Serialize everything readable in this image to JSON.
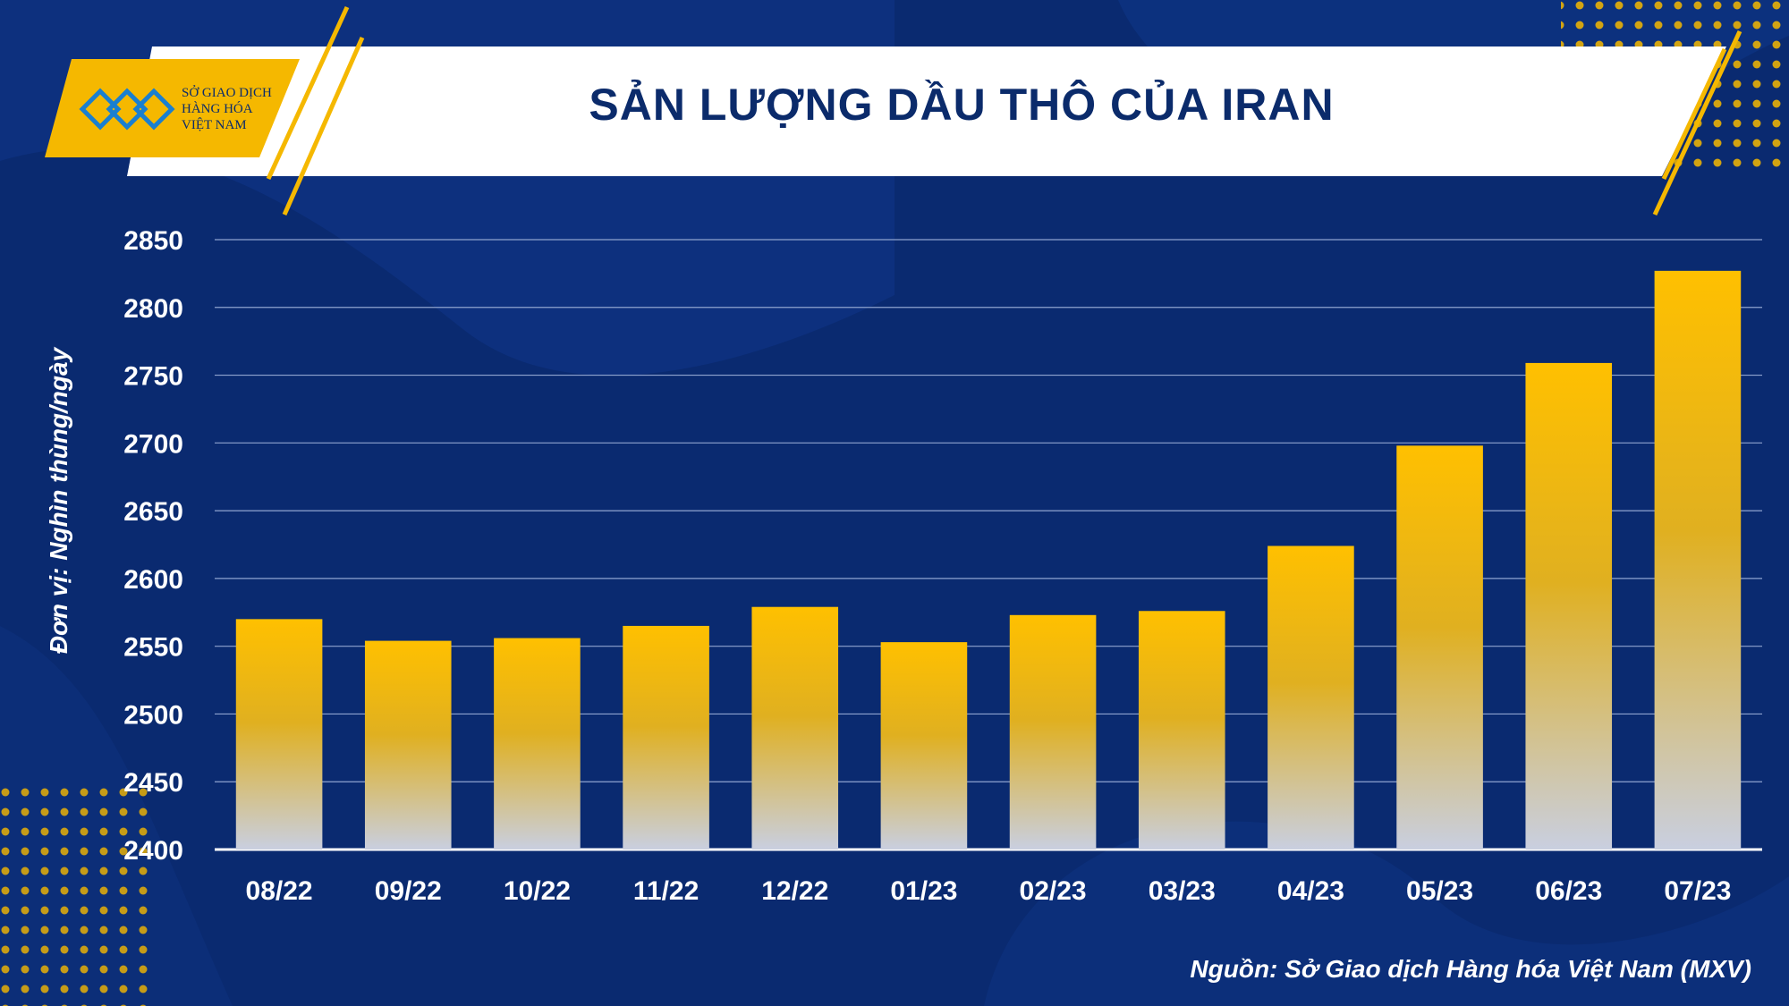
{
  "brand": {
    "line1": "SỞ GIAO DỊCH",
    "line2": "HÀNG HÓA",
    "line3": "VIỆT NAM"
  },
  "colors": {
    "background": "#0a2a70",
    "bar_top": "#ffc000",
    "bar_bottom": "#c8cfe0",
    "title_text": "#0b2b6b",
    "accent": "#f5b800"
  },
  "chart_data": {
    "type": "bar",
    "title": "SẢN LƯỢNG DẦU THÔ CỦA IRAN",
    "xlabel": "",
    "ylabel": "Đơn vị: Nghìn thùng/ngày",
    "categories": [
      "08/22",
      "09/22",
      "10/22",
      "11/22",
      "12/22",
      "01/23",
      "02/23",
      "03/23",
      "04/23",
      "05/23",
      "06/23",
      "07/23"
    ],
    "values": [
      2570,
      2554,
      2556,
      2565,
      2579,
      2553,
      2573,
      2576,
      2624,
      2698,
      2759,
      2827
    ],
    "ylim": [
      2400,
      2850
    ],
    "yticks": [
      2400,
      2450,
      2500,
      2550,
      2600,
      2650,
      2700,
      2750,
      2800,
      2850
    ],
    "grid": true,
    "source": "Nguồn: Sở Giao dịch Hàng hóa Việt Nam (MXV)"
  }
}
